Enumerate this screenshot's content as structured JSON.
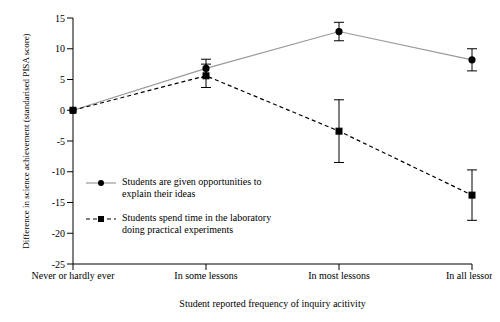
{
  "chart_data": {
    "type": "line",
    "x_label": "Student reported frequency of inquiry acitivity",
    "y_label": "Difference in science achievement (standarised PISA score)",
    "categories": [
      "Never or hardly ever",
      "In some lessons",
      "In most lessons",
      "In all lessons"
    ],
    "series": [
      {
        "name": "Students are given opportunities to explain their ideas",
        "color": "#999999",
        "marker": "circle",
        "line_style": "solid",
        "values": [
          0,
          6.8,
          12.8,
          8.2
        ],
        "errors": [
          0,
          1.5,
          1.5,
          1.8
        ]
      },
      {
        "name": "Students spend time in the laboratory doing practical experiments",
        "color": "#000000",
        "marker": "square",
        "line_style": "dashed",
        "values": [
          0,
          5.6,
          -3.4,
          -13.8
        ],
        "errors": [
          0,
          1.9,
          5.1,
          4.1
        ]
      }
    ],
    "ylim": [
      -25,
      15
    ],
    "yticks": [
      -25,
      -20,
      -15,
      -10,
      -5,
      0,
      5,
      10,
      15
    ],
    "grid": false,
    "legend": "lower left"
  }
}
